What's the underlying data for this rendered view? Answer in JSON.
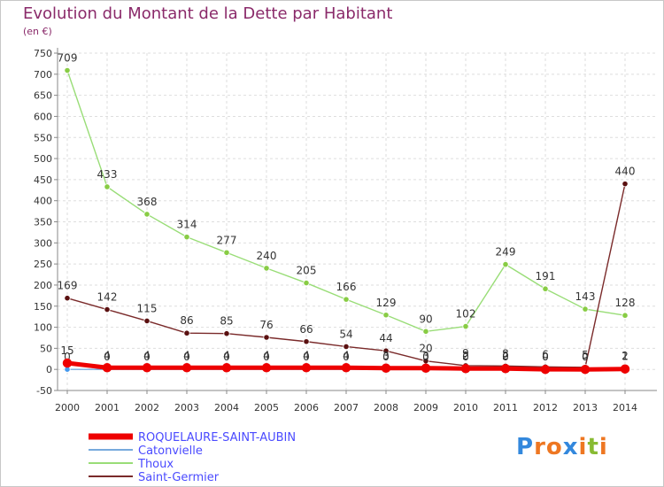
{
  "chart_data": {
    "type": "line",
    "title": "Evolution du Montant de la Dette par Habitant",
    "unit_label": "(en €)",
    "xlabel": "",
    "ylabel": "(en €)",
    "ylim": [
      -50,
      750
    ],
    "yticks": [
      -50,
      0,
      50,
      100,
      150,
      200,
      250,
      300,
      350,
      400,
      450,
      500,
      550,
      600,
      650,
      700,
      750
    ],
    "categories": [
      "2000",
      "2001",
      "2002",
      "2003",
      "2004",
      "2005",
      "2006",
      "2007",
      "2008",
      "2009",
      "2010",
      "2011",
      "2012",
      "2013",
      "2014"
    ],
    "grid": true,
    "legend_position": "bottom-left",
    "series": [
      {
        "name": "Thoux",
        "color": "#99dd77",
        "marker_color": "#88cc44",
        "values": [
          709,
          433,
          368,
          314,
          277,
          240,
          205,
          166,
          129,
          90,
          102,
          249,
          191,
          143,
          128
        ],
        "labels": [
          "709",
          "433",
          "368",
          "314",
          "277",
          "240",
          "205",
          "166",
          "129",
          "90",
          "102",
          "249",
          "191",
          "143",
          "128"
        ]
      },
      {
        "name": "Saint-Germier",
        "color": "#7a2a2a",
        "marker_color": "#5a1010",
        "values": [
          169,
          142,
          115,
          86,
          85,
          76,
          66,
          54,
          44,
          20,
          9,
          8,
          6,
          5,
          440
        ],
        "labels": [
          "169",
          "142",
          "115",
          "86",
          "85",
          "76",
          "66",
          "54",
          "44",
          "20",
          "9",
          "8",
          "6",
          "5",
          "440"
        ]
      },
      {
        "name": "Catonvielle",
        "color": "#77aadd",
        "marker_color": "#4499ee",
        "values": [
          0,
          0,
          0,
          0,
          0,
          0,
          0,
          0,
          0,
          0,
          0,
          0,
          0,
          0,
          2
        ],
        "labels": [
          "0",
          "0",
          "0",
          "0",
          "0",
          "0",
          "0",
          "0",
          "0",
          "0",
          "0",
          "0",
          "0",
          "0",
          "2"
        ]
      },
      {
        "name": "ROQUELAURE-SAINT-AUBIN",
        "color": "#ee0000",
        "marker_color": "#ee0000",
        "values": [
          15,
          4,
          4,
          4,
          4,
          4,
          4,
          4,
          3,
          3,
          2,
          2,
          0,
          0,
          1
        ],
        "labels": [
          "15",
          "4",
          "4",
          "4",
          "4",
          "4",
          "4",
          "4",
          "3",
          "3",
          "2",
          "2",
          "0",
          "0",
          "1"
        ]
      }
    ]
  },
  "legend": {
    "items": [
      "ROQUELAURE-SAINT-AUBIN",
      "Catonvielle",
      "Thoux",
      "Saint-Germier"
    ],
    "text_color": "#4a4aff"
  },
  "logo": {
    "letters": [
      "P",
      "r",
      "o",
      "x",
      "i",
      "t",
      "i"
    ],
    "colors": [
      "#3388dd",
      "#ee7722",
      "#ee7722",
      "#3388dd",
      "#ee7722",
      "#88bb33",
      "#ee7722"
    ]
  }
}
